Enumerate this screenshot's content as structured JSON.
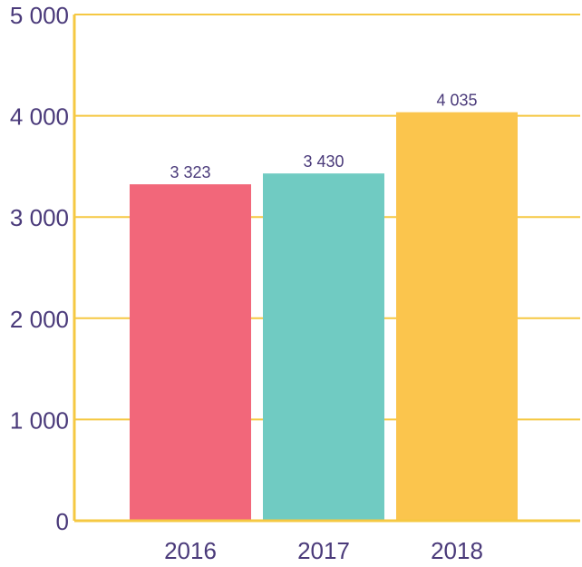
{
  "chart_data": {
    "type": "bar",
    "title": "",
    "xlabel": "",
    "ylabel": "",
    "categories": [
      "2016",
      "2017",
      "2018"
    ],
    "values": [
      3323,
      3430,
      4035
    ],
    "value_labels": [
      "3 323",
      "3 430",
      "4 035"
    ],
    "bar_colors": [
      "#f2677a",
      "#70cbc2",
      "#fbc54d"
    ],
    "ylim": [
      0,
      5000
    ],
    "yticks": [
      0,
      1000,
      2000,
      3000,
      4000,
      5000
    ],
    "ytick_labels": [
      "0",
      "1 000",
      "2 000",
      "3 000",
      "4 000",
      "5 000"
    ],
    "grid": true,
    "axis_color": "#f5c842",
    "grid_color": "#f5c842",
    "text_color": "#4a3a7a"
  }
}
